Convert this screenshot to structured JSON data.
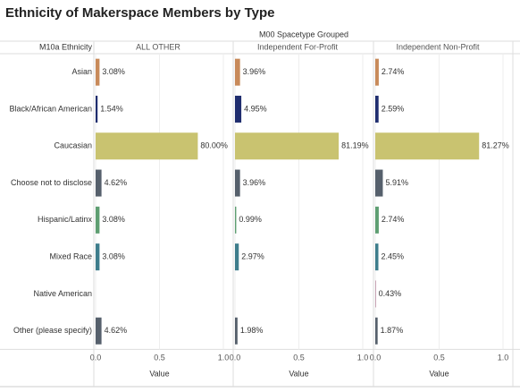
{
  "chart_data": {
    "type": "bar",
    "title": "Ethnicity of Makerspace Members by Type",
    "column_header": "M00 Spacetype Grouped",
    "row_header": "M10a Ethnicity",
    "categories": [
      "Asian",
      "Black/African American",
      "Caucasian",
      "Choose not to disclose",
      "Hispanic/Latinx",
      "Mixed Race",
      "Native American",
      "Other (please specify)"
    ],
    "colors": [
      "#c88a5a",
      "#1f2d6e",
      "#c9c370",
      "#56606c",
      "#5e9e72",
      "#3e7d8c",
      "#c7a3b4",
      "#56606c"
    ],
    "series": [
      {
        "name": "ALL OTHER",
        "values": [
          0.0308,
          0.0154,
          0.8,
          0.0462,
          0.0308,
          0.0308,
          null,
          0.0462
        ],
        "value_labels": [
          "3.08%",
          "1.54%",
          "80.00%",
          "4.62%",
          "3.08%",
          "3.08%",
          null,
          "4.62%"
        ]
      },
      {
        "name": "Independent For-Profit",
        "values": [
          0.0396,
          0.0495,
          0.8119,
          0.0396,
          0.0099,
          0.0297,
          null,
          0.0198
        ],
        "value_labels": [
          "3.96%",
          "4.95%",
          "81.19%",
          "3.96%",
          "0.99%",
          "2.97%",
          null,
          "1.98%"
        ]
      },
      {
        "name": "Independent Non-Profit",
        "values": [
          0.0274,
          0.0259,
          0.8127,
          0.0591,
          0.0274,
          0.0245,
          0.0043,
          0.0187
        ],
        "value_labels": [
          "2.74%",
          "2.59%",
          "81.27%",
          "5.91%",
          "2.74%",
          "2.45%",
          "0.43%",
          "1.87%"
        ]
      }
    ],
    "xlim": [
      0,
      1
    ],
    "xticks": [
      {
        "value": 0,
        "label": "0.0"
      },
      0.5,
      {
        "value": 1,
        "label": "1.0"
      }
    ],
    "xlabel": "Value",
    "grid": true
  }
}
